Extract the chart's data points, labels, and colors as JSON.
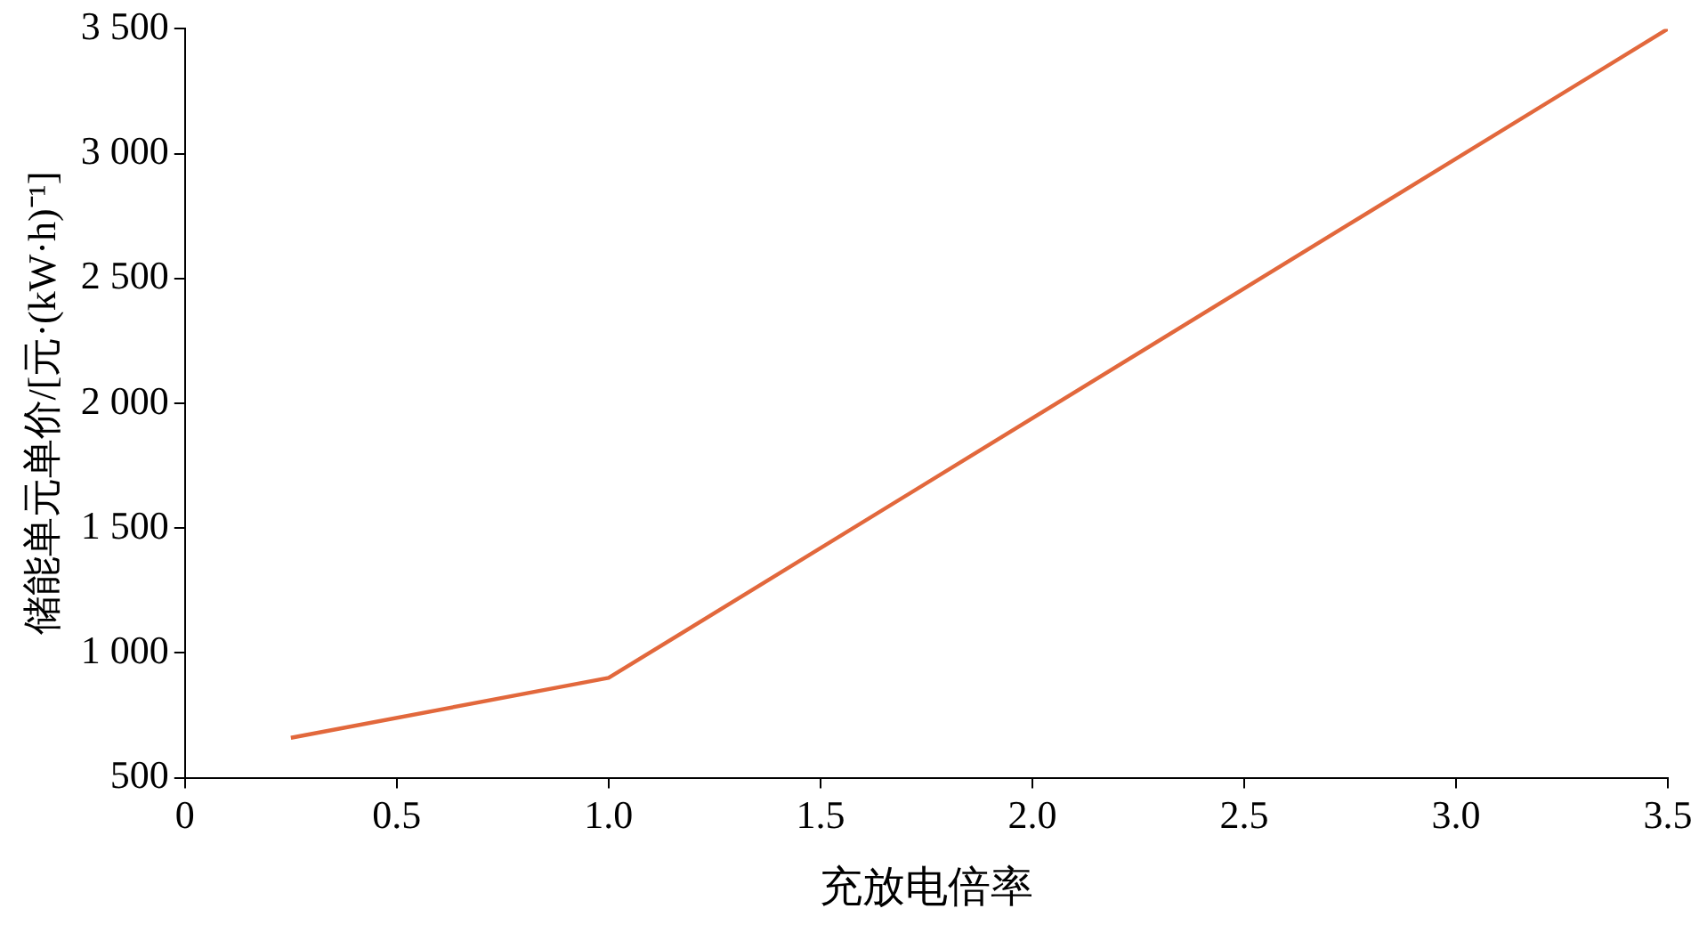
{
  "chart_data": {
    "type": "line",
    "xlabel": "充放电倍率",
    "ylabel": "储能单元单价/[元·(kW·h)⁻¹]",
    "x": [
      0.25,
      1.0,
      3.5
    ],
    "series": [
      {
        "color": "#e2683c",
        "values": [
          660,
          900,
          3500
        ]
      }
    ],
    "xlim": [
      0,
      3.5
    ],
    "xticks": [
      0,
      0.5,
      {
        "value": 1,
        "label": "1.0"
      },
      1.5,
      {
        "value": 2,
        "label": "2.0"
      },
      2.5,
      {
        "value": 3,
        "label": "3.0"
      },
      3.5
    ],
    "ylim": [
      500,
      3500
    ],
    "yticks": [
      500,
      {
        "value": 1000,
        "label": "1 000"
      },
      {
        "value": 1500,
        "label": "1 500"
      },
      {
        "value": 2000,
        "label": "2 000"
      },
      {
        "value": 2500,
        "label": "2 500"
      },
      {
        "value": 3000,
        "label": "3 000"
      },
      {
        "value": 3500,
        "label": "3 500"
      }
    ],
    "grid": false,
    "legend": false,
    "marker": "none",
    "line_style": "solid"
  }
}
